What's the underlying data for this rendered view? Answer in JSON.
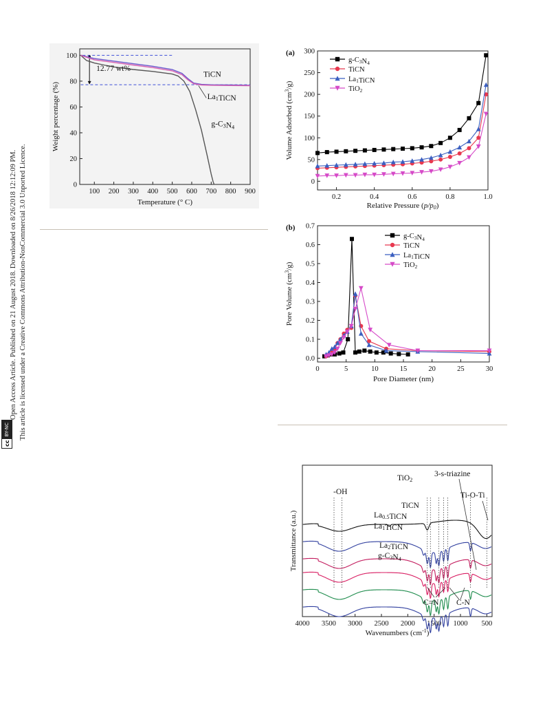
{
  "sidebar": {
    "line1": "Open Access Article. Published on 21 August 2018. Downloaded on 8/26/2018 12:12:09 PM.",
    "line2": "This article is licensed under a Creative Commons Attribution-NonCommercial 3.0 Unported Licence.",
    "badge_cc": "cc",
    "badge_by": "BY-NC"
  },
  "chart_data": [
    {
      "id": "tga",
      "type": "line",
      "xlabel": "Temperature (° C)",
      "ylabel": "Weight percentage (%)",
      "xlim": [
        25,
        900
      ],
      "ylim": [
        0,
        105
      ],
      "xticks": [
        100,
        200,
        300,
        400,
        500,
        600,
        700,
        800,
        900
      ],
      "yticks": [
        0,
        20,
        40,
        60,
        80,
        100
      ],
      "series": [
        {
          "name": "g-C3N4",
          "color": "#555555",
          "x": [
            30,
            60,
            100,
            150,
            200,
            300,
            400,
            450,
            500,
            530,
            560,
            590,
            620,
            650,
            680,
            700,
            710,
            715
          ],
          "y": [
            100,
            96,
            94,
            92.5,
            91,
            89,
            87.5,
            86.5,
            85.5,
            84,
            80,
            72,
            58,
            42,
            22,
            8,
            2,
            0
          ]
        },
        {
          "name": "TiCN",
          "color": "#6a5acd",
          "x": [
            30,
            60,
            100,
            200,
            300,
            400,
            500,
            550,
            580,
            610,
            650,
            700,
            800,
            900
          ],
          "y": [
            100,
            99,
            97.5,
            95.5,
            93.5,
            91.5,
            89,
            86,
            82,
            78.5,
            77.5,
            77.2,
            77,
            76.8
          ]
        },
        {
          "name": "La1TiCN",
          "color": "#d65fb0",
          "x": [
            30,
            60,
            100,
            200,
            300,
            400,
            500,
            550,
            580,
            610,
            650,
            700,
            800,
            900
          ],
          "y": [
            100,
            98.5,
            96.5,
            94.5,
            92.5,
            90.5,
            88,
            85,
            81,
            78,
            77,
            76.8,
            76.6,
            76.5
          ]
        }
      ],
      "reference_lines": [
        100,
        77.2
      ],
      "annotations": {
        "mass_loss": "12.77 wt%",
        "label_ticn": "TiCN",
        "label_la1ticn": "La1TiCN",
        "label_gcn": "g-C3N4"
      }
    },
    {
      "id": "bet-isotherm",
      "type": "line",
      "panel": "(a)",
      "xlabel": "Relative Pressure",
      "xlabel_ratio": "p/p0",
      "ylabel": "Volume Adsorbed (cm3/g)",
      "xlim": [
        0.1,
        1.0
      ],
      "ylim": [
        -20,
        300
      ],
      "xticks": [
        0.2,
        0.4,
        0.6,
        0.8,
        1.0
      ],
      "yticks": [
        0,
        50,
        100,
        150,
        200,
        250,
        300
      ],
      "legend": "top-left",
      "series": [
        {
          "name": "g-C3N4",
          "color": "#000000",
          "marker": "square",
          "x": [
            0.1,
            0.15,
            0.2,
            0.25,
            0.3,
            0.35,
            0.4,
            0.45,
            0.5,
            0.55,
            0.6,
            0.65,
            0.7,
            0.75,
            0.8,
            0.85,
            0.9,
            0.95,
            0.99
          ],
          "y": [
            65,
            67,
            68,
            69,
            70,
            71,
            72,
            73,
            74,
            75,
            76,
            78,
            81,
            88,
            100,
            118,
            145,
            180,
            290
          ]
        },
        {
          "name": "TiCN",
          "color": "#e8384f",
          "marker": "circle",
          "x": [
            0.1,
            0.15,
            0.2,
            0.25,
            0.3,
            0.35,
            0.4,
            0.45,
            0.5,
            0.55,
            0.6,
            0.65,
            0.7,
            0.75,
            0.8,
            0.85,
            0.9,
            0.95,
            0.99
          ],
          "y": [
            30,
            31,
            32,
            33,
            34,
            35,
            36,
            37,
            38,
            39,
            41,
            43,
            46,
            50,
            56,
            64,
            76,
            100,
            200
          ]
        },
        {
          "name": "La1TiCN",
          "color": "#3b5fc0",
          "marker": "triangle-up",
          "x": [
            0.1,
            0.15,
            0.2,
            0.25,
            0.3,
            0.35,
            0.4,
            0.45,
            0.5,
            0.55,
            0.6,
            0.65,
            0.7,
            0.75,
            0.8,
            0.85,
            0.9,
            0.95,
            0.99
          ],
          "y": [
            35,
            36,
            37,
            38,
            39,
            40,
            41,
            42,
            44,
            45,
            47,
            50,
            54,
            60,
            68,
            78,
            92,
            120,
            222
          ]
        },
        {
          "name": "TiO2",
          "color": "#d64ac8",
          "marker": "triangle-down",
          "x": [
            0.1,
            0.15,
            0.2,
            0.25,
            0.3,
            0.35,
            0.4,
            0.45,
            0.5,
            0.55,
            0.6,
            0.65,
            0.7,
            0.75,
            0.8,
            0.85,
            0.9,
            0.95,
            0.99
          ],
          "y": [
            12,
            13,
            13,
            14,
            14,
            15,
            15,
            16,
            17,
            18,
            19,
            21,
            23,
            27,
            33,
            42,
            55,
            80,
            155
          ]
        }
      ]
    },
    {
      "id": "pore-distribution",
      "type": "line",
      "panel": "(b)",
      "xlabel": "Pore Diameter (nm)",
      "ylabel": "Pore Volume (cm3/g)",
      "xlim": [
        0,
        30
      ],
      "ylim": [
        -0.02,
        0.7
      ],
      "xticks": [
        0,
        5,
        10,
        15,
        20,
        25,
        30
      ],
      "yticks": [
        0.0,
        0.1,
        0.2,
        0.3,
        0.4,
        0.5,
        0.6,
        0.7
      ],
      "legend": "top-right",
      "series": [
        {
          "name": "g-C3N4",
          "color": "#000000",
          "marker": "square",
          "x": [
            1.2,
            1.8,
            2.4,
            3.0,
            3.8,
            4.5,
            5.3,
            6.0,
            6.6,
            7.3,
            8.2,
            9.2,
            10.3,
            11.5,
            12.8,
            14.2,
            15.8
          ],
          "y": [
            0.01,
            0.015,
            0.02,
            0.02,
            0.025,
            0.03,
            0.1,
            0.63,
            0.03,
            0.035,
            0.04,
            0.035,
            0.03,
            0.03,
            0.025,
            0.022,
            0.02
          ]
        },
        {
          "name": "TiCN",
          "color": "#e8384f",
          "marker": "circle",
          "x": [
            1.5,
            2.0,
            2.5,
            3.0,
            3.5,
            4.0,
            4.6,
            5.2,
            5.9,
            6.6,
            7.6,
            9.0,
            12.0,
            17.5,
            30
          ],
          "y": [
            0.01,
            0.02,
            0.04,
            0.05,
            0.08,
            0.1,
            0.13,
            0.15,
            0.16,
            0.33,
            0.17,
            0.09,
            0.05,
            0.04,
            0.035
          ]
        },
        {
          "name": "La1TiCN",
          "color": "#3b5fc0",
          "marker": "triangle-up",
          "x": [
            1.5,
            2.0,
            2.5,
            3.0,
            3.5,
            4.0,
            4.6,
            5.2,
            5.9,
            6.6,
            7.6,
            9.0,
            12.0,
            17.5,
            30
          ],
          "y": [
            0.02,
            0.03,
            0.05,
            0.06,
            0.08,
            0.1,
            0.12,
            0.14,
            0.17,
            0.34,
            0.13,
            0.07,
            0.04,
            0.035,
            0.025
          ]
        },
        {
          "name": "TiO2",
          "color": "#d64ac8",
          "marker": "triangle-down",
          "x": [
            1.5,
            2.0,
            2.5,
            3.0,
            3.5,
            4.0,
            4.6,
            5.2,
            5.9,
            6.6,
            7.6,
            9.2,
            12.5,
            17.5,
            30
          ],
          "y": [
            0.01,
            0.015,
            0.02,
            0.03,
            0.05,
            0.08,
            0.11,
            0.14,
            0.17,
            0.26,
            0.37,
            0.15,
            0.07,
            0.04,
            0.04
          ]
        }
      ]
    },
    {
      "id": "ftir",
      "type": "line",
      "xlabel": "Wavenumbers (cm-1)",
      "ylabel": "Transmittance (a.u.)",
      "xlim": [
        4000,
        400
      ],
      "xticks": [
        4000,
        3500,
        3000,
        2500,
        2000,
        1500,
        1000,
        500
      ],
      "series": [
        {
          "name": "TiO2",
          "color": "#111111",
          "offset": 6.0
        },
        {
          "name": "TiCN",
          "color": "#2f3e9e",
          "offset": 5.0
        },
        {
          "name": "La0.5TiCN",
          "color": "#c2185b",
          "offset": 4.0
        },
        {
          "name": "La1TiCN",
          "color": "#d81b60",
          "offset": 3.2
        },
        {
          "name": "La2TiCN",
          "color": "#1b8a4a",
          "offset": 2.2
        },
        {
          "name": "g-C3N4",
          "color": "#2f3e9e",
          "offset": 1.2
        }
      ],
      "peak_markers": [
        3400,
        3250,
        1630,
        1570,
        1410,
        1320,
        1240,
        810,
        500
      ],
      "annotations": {
        "oh": "-OH",
        "triazine": "3-s-triazine",
        "tiooti": "Ti-O-Ti",
        "cn_double": "C=N",
        "cn_single": "C-N"
      }
    }
  ]
}
